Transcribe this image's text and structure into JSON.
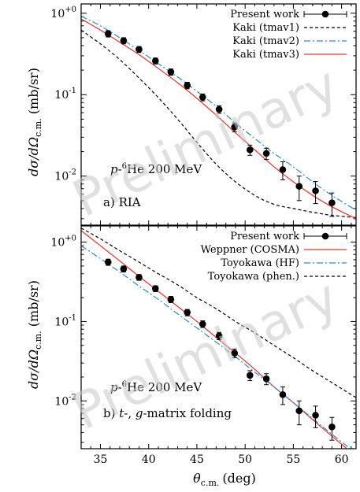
{
  "colors": {
    "data": "#000000",
    "red": "#e8322c",
    "blue": "#2a8bc9",
    "black_dashed": "#000000",
    "watermark": "#c8c8c8"
  },
  "watermark": "Preliminary",
  "x_axis": {
    "label_symbol": "θ",
    "label_sub": "c.m.",
    "label_unit": "(deg)",
    "ticks": [
      35,
      40,
      45,
      50,
      55,
      60
    ],
    "tick_labels": [
      "35",
      "40",
      "45",
      "50",
      "55",
      "60"
    ],
    "range": [
      33,
      61.5
    ]
  },
  "chart_data": [
    {
      "type": "scatter",
      "panel": "a",
      "annotation": "a) RIA",
      "reaction_prefix": "p-",
      "reaction_mass": "6",
      "reaction_suffix": "He 200 MeV",
      "ylabel_main": "dσ/dΩ",
      "ylabel_sub": "c.m.",
      "ylabel_unit": " (mb/sr)",
      "y_scale": "log",
      "ylim": [
        0.0025,
        1.3
      ],
      "y_tick_values": [
        1,
        0.1,
        0.01
      ],
      "y_tick_labels": [
        {
          "base": "10",
          "exp": "+0"
        },
        {
          "base": "10",
          "exp": "-1"
        },
        {
          "base": "10",
          "exp": "-2"
        }
      ],
      "legend_position": "top-right",
      "series": [
        {
          "name": "Present work",
          "style": "points-errorbars",
          "color": "#000000",
          "x": [
            35.8,
            37.4,
            39.0,
            40.7,
            42.3,
            44.0,
            45.6,
            47.3,
            48.9,
            50.5,
            52.2,
            53.9,
            55.6,
            57.3,
            59.0
          ],
          "y": [
            0.56,
            0.46,
            0.36,
            0.26,
            0.19,
            0.13,
            0.093,
            0.066,
            0.04,
            0.021,
            0.019,
            0.012,
            0.0075,
            0.0066,
            0.0047
          ],
          "err": [
            0.05,
            0.04,
            0.03,
            0.022,
            0.017,
            0.012,
            0.009,
            0.007,
            0.005,
            0.003,
            0.003,
            0.003,
            0.0025,
            0.002,
            0.0015
          ]
        },
        {
          "name": "Kaki (tmav1)",
          "style": "dashed",
          "color": "#000000",
          "x": [
            33,
            35,
            37,
            39,
            41,
            43,
            45,
            47,
            49,
            51,
            53,
            55,
            57,
            59,
            61.5
          ],
          "y": [
            0.62,
            0.42,
            0.27,
            0.16,
            0.092,
            0.05,
            0.026,
            0.014,
            0.0085,
            0.0058,
            0.0045,
            0.004,
            0.0036,
            0.0033,
            0.0031
          ]
        },
        {
          "name": "Kaki (tmav2)",
          "style": "dashdot",
          "color": "#2a8bc9",
          "x": [
            33,
            35,
            37,
            39,
            41,
            43,
            45,
            47,
            49,
            51,
            53,
            55,
            57,
            59,
            61.5
          ],
          "y": [
            0.92,
            0.7,
            0.5,
            0.35,
            0.24,
            0.165,
            0.11,
            0.072,
            0.045,
            0.029,
            0.019,
            0.013,
            0.0085,
            0.0058,
            0.0038
          ]
        },
        {
          "name": "Kaki (tmav3)",
          "style": "solid",
          "color": "#e8322c",
          "x": [
            33,
            35,
            37,
            39,
            41,
            43,
            45,
            47,
            49,
            51,
            53,
            55,
            57,
            59,
            61.5
          ],
          "y": [
            0.85,
            0.62,
            0.44,
            0.31,
            0.21,
            0.14,
            0.09,
            0.056,
            0.034,
            0.021,
            0.013,
            0.0085,
            0.0058,
            0.0042,
            0.003
          ]
        }
      ]
    },
    {
      "type": "scatter",
      "panel": "b",
      "annotation_prefix": "b) ",
      "annotation_t": "t",
      "annotation_mid": "-, ",
      "annotation_g": "g",
      "annotation_rest": "-matrix folding",
      "reaction_prefix": "p-",
      "reaction_mass": "6",
      "reaction_suffix": "He 200 MeV",
      "ylabel_main": "dσ/dΩ",
      "ylabel_sub": "c.m.",
      "ylabel_unit": " (mb/sr)",
      "y_scale": "log",
      "ylim": [
        0.0025,
        1.6
      ],
      "y_tick_values": [
        1,
        0.1,
        0.01
      ],
      "y_tick_labels": [
        {
          "base": "10",
          "exp": "+0"
        },
        {
          "base": "10",
          "exp": "-1"
        },
        {
          "base": "10",
          "exp": "-2"
        }
      ],
      "legend_position": "top-right",
      "series": [
        {
          "name": "Present work",
          "style": "points-errorbars",
          "color": "#000000",
          "x": [
            35.8,
            37.4,
            39.0,
            40.7,
            42.3,
            44.0,
            45.6,
            47.3,
            48.9,
            50.5,
            52.2,
            53.9,
            55.6,
            57.3,
            59.0
          ],
          "y": [
            0.56,
            0.46,
            0.36,
            0.26,
            0.19,
            0.13,
            0.093,
            0.066,
            0.04,
            0.021,
            0.019,
            0.012,
            0.0075,
            0.0066,
            0.0047
          ],
          "err": [
            0.05,
            0.04,
            0.03,
            0.022,
            0.017,
            0.012,
            0.009,
            0.007,
            0.005,
            0.003,
            0.003,
            0.003,
            0.0025,
            0.002,
            0.0015
          ]
        },
        {
          "name": "Weppner (COSMA)",
          "style": "solid",
          "color": "#e8322c",
          "x": [
            33,
            35,
            37,
            39,
            41,
            43,
            45,
            47,
            49,
            51,
            53,
            55,
            57,
            59,
            61.5
          ],
          "y": [
            1.4,
            0.9,
            0.58,
            0.37,
            0.24,
            0.155,
            0.1,
            0.063,
            0.04,
            0.025,
            0.015,
            0.0095,
            0.0058,
            0.0036,
            0.002
          ]
        },
        {
          "name": "Toyokawa (HF)",
          "style": "dashdot",
          "color": "#2a8bc9",
          "x": [
            33,
            35,
            37,
            39,
            41,
            43,
            45,
            47,
            49,
            51,
            53,
            55,
            57,
            59,
            61.5
          ],
          "y": [
            0.9,
            0.62,
            0.42,
            0.28,
            0.19,
            0.125,
            0.083,
            0.055,
            0.036,
            0.023,
            0.015,
            0.0095,
            0.006,
            0.0038,
            0.0022
          ]
        },
        {
          "name": "Toyokawa (phen.)",
          "style": "dashed",
          "color": "#000000",
          "x": [
            33,
            35,
            37,
            39,
            41,
            43,
            45,
            47,
            49,
            51,
            53,
            55,
            57,
            59,
            61.5
          ],
          "y": [
            1.5,
            1.1,
            0.78,
            0.56,
            0.4,
            0.29,
            0.2,
            0.145,
            0.1,
            0.072,
            0.05,
            0.035,
            0.024,
            0.017,
            0.011
          ]
        }
      ]
    }
  ]
}
